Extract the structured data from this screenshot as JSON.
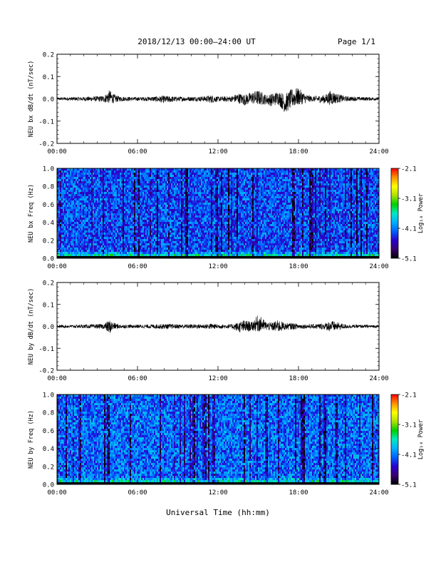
{
  "header": {
    "title": "2018/12/13  00:00–24:00 UT",
    "page": "Page 1/1"
  },
  "xaxis_title": "Universal Time (hh:mm)",
  "colors": {
    "background": "#ffffff",
    "trace": "#000000"
  },
  "colorscale": [
    "#000000",
    "#3a0070",
    "#2a00d0",
    "#0060ff",
    "#00b0ff",
    "#00e8c0",
    "#00d000",
    "#b0e000",
    "#ffff00",
    "#ff9000",
    "#ff0000"
  ],
  "chart_data": [
    {
      "type": "line",
      "ylabel": "NEU bx dB/dt (nT/sec)",
      "xlim": [
        "00:00",
        "24:00"
      ],
      "ylim": [
        -0.2,
        0.2
      ],
      "x_ticks": [
        "00:00",
        "06:00",
        "12:00",
        "18:00",
        "24:00"
      ],
      "y_ticks": [
        "0.2",
        "0.1",
        "0.0",
        "-0.1",
        "-0.2"
      ],
      "series": [
        {
          "x_hours": [
            0,
            1,
            2,
            3,
            3.5,
            3.9,
            4.2,
            4.6,
            5,
            6,
            7,
            8,
            9,
            10,
            11,
            11.5,
            12,
            13,
            13.5,
            14,
            14.5,
            15,
            15.6,
            16,
            16.5,
            17,
            17.5,
            18,
            18.5,
            19,
            20,
            20.4,
            20.8,
            21.5,
            22,
            23,
            24
          ],
          "y_max": [
            0.006,
            0.008,
            0.009,
            0.012,
            0.015,
            0.04,
            0.022,
            0.012,
            0.01,
            0.008,
            0.01,
            0.014,
            0.01,
            0.01,
            0.012,
            0.018,
            0.01,
            0.012,
            0.026,
            0.02,
            0.03,
            0.04,
            0.018,
            0.024,
            0.036,
            0.022,
            0.045,
            0.05,
            0.022,
            0.012,
            0.018,
            0.04,
            0.025,
            0.012,
            0.01,
            0.008,
            0.007
          ],
          "y_min": [
            -0.006,
            -0.008,
            -0.01,
            -0.012,
            -0.016,
            -0.022,
            -0.02,
            -0.012,
            -0.01,
            -0.009,
            -0.01,
            -0.02,
            -0.012,
            -0.01,
            -0.012,
            -0.02,
            -0.012,
            -0.014,
            -0.02,
            -0.03,
            -0.022,
            -0.03,
            -0.025,
            -0.035,
            -0.025,
            -0.065,
            -0.04,
            -0.03,
            -0.02,
            -0.012,
            -0.022,
            -0.03,
            -0.02,
            -0.012,
            -0.01,
            -0.008,
            -0.007
          ]
        }
      ]
    },
    {
      "type": "heatmap",
      "ylabel": "NEU bx Freq (Hz)",
      "xlim": [
        "00:00",
        "24:00"
      ],
      "ylim": [
        0.0,
        1.0
      ],
      "x_ticks": [
        "00:00",
        "06:00",
        "12:00",
        "18:00",
        "24:00"
      ],
      "y_ticks": [
        "1.0",
        "0.8",
        "0.6",
        "0.4",
        "0.2",
        "0.0"
      ],
      "colorbar": {
        "label": "Log₁₀ Power",
        "ticks": [
          "-2.1",
          "-3.1",
          "-4.1",
          "-5.1"
        ],
        "range": [
          -5.1,
          -2.1
        ]
      },
      "background_level": -4.25,
      "low_freq_level": -3.2
    },
    {
      "type": "line",
      "ylabel": "NEU by dB/dt (nT/sec)",
      "xlim": [
        "00:00",
        "24:00"
      ],
      "ylim": [
        -0.2,
        0.2
      ],
      "x_ticks": [
        "00:00",
        "06:00",
        "12:00",
        "18:00",
        "24:00"
      ],
      "y_ticks": [
        "0.2",
        "0.1",
        "0.0",
        "-0.1",
        "-0.2"
      ],
      "series": [
        {
          "x_hours": [
            0,
            1,
            2,
            3,
            3.5,
            3.9,
            4.2,
            4.6,
            5,
            6,
            7,
            8,
            9,
            10,
            11,
            11.5,
            12,
            13,
            13.5,
            14,
            14.5,
            15,
            15.6,
            16,
            16.5,
            17,
            17.5,
            18,
            18.5,
            19,
            20,
            20.4,
            20.8,
            21.5,
            22,
            23,
            24
          ],
          "y_max": [
            0.006,
            0.007,
            0.008,
            0.01,
            0.012,
            0.03,
            0.018,
            0.01,
            0.008,
            0.008,
            0.009,
            0.012,
            0.01,
            0.01,
            0.01,
            0.014,
            0.01,
            0.01,
            0.02,
            0.03,
            0.02,
            0.055,
            0.02,
            0.018,
            0.03,
            0.015,
            0.016,
            0.012,
            0.01,
            0.01,
            0.016,
            0.028,
            0.02,
            0.01,
            0.008,
            0.007,
            0.006
          ],
          "y_min": [
            -0.006,
            -0.007,
            -0.008,
            -0.01,
            -0.012,
            -0.035,
            -0.015,
            -0.01,
            -0.008,
            -0.008,
            -0.009,
            -0.012,
            -0.01,
            -0.01,
            -0.01,
            -0.014,
            -0.01,
            -0.01,
            -0.026,
            -0.03,
            -0.02,
            -0.025,
            -0.018,
            -0.02,
            -0.028,
            -0.016,
            -0.015,
            -0.012,
            -0.01,
            -0.01,
            -0.016,
            -0.024,
            -0.02,
            -0.01,
            -0.008,
            -0.007,
            -0.006
          ]
        }
      ]
    },
    {
      "type": "heatmap",
      "ylabel": "NEU by Freq (Hz)",
      "xlim": [
        "00:00",
        "24:00"
      ],
      "ylim": [
        0.0,
        1.0
      ],
      "x_ticks": [
        "00:00",
        "06:00",
        "12:00",
        "18:00",
        "24:00"
      ],
      "y_ticks": [
        "1.0",
        "0.8",
        "0.6",
        "0.4",
        "0.2",
        "0.0"
      ],
      "colorbar": {
        "label": "Log₁₀ Power",
        "ticks": [
          "-2.1",
          "-3.1",
          "-4.1",
          "-5.1"
        ],
        "range": [
          -5.1,
          -2.1
        ]
      },
      "background_level": -4.15,
      "low_freq_level": -3.3
    }
  ]
}
